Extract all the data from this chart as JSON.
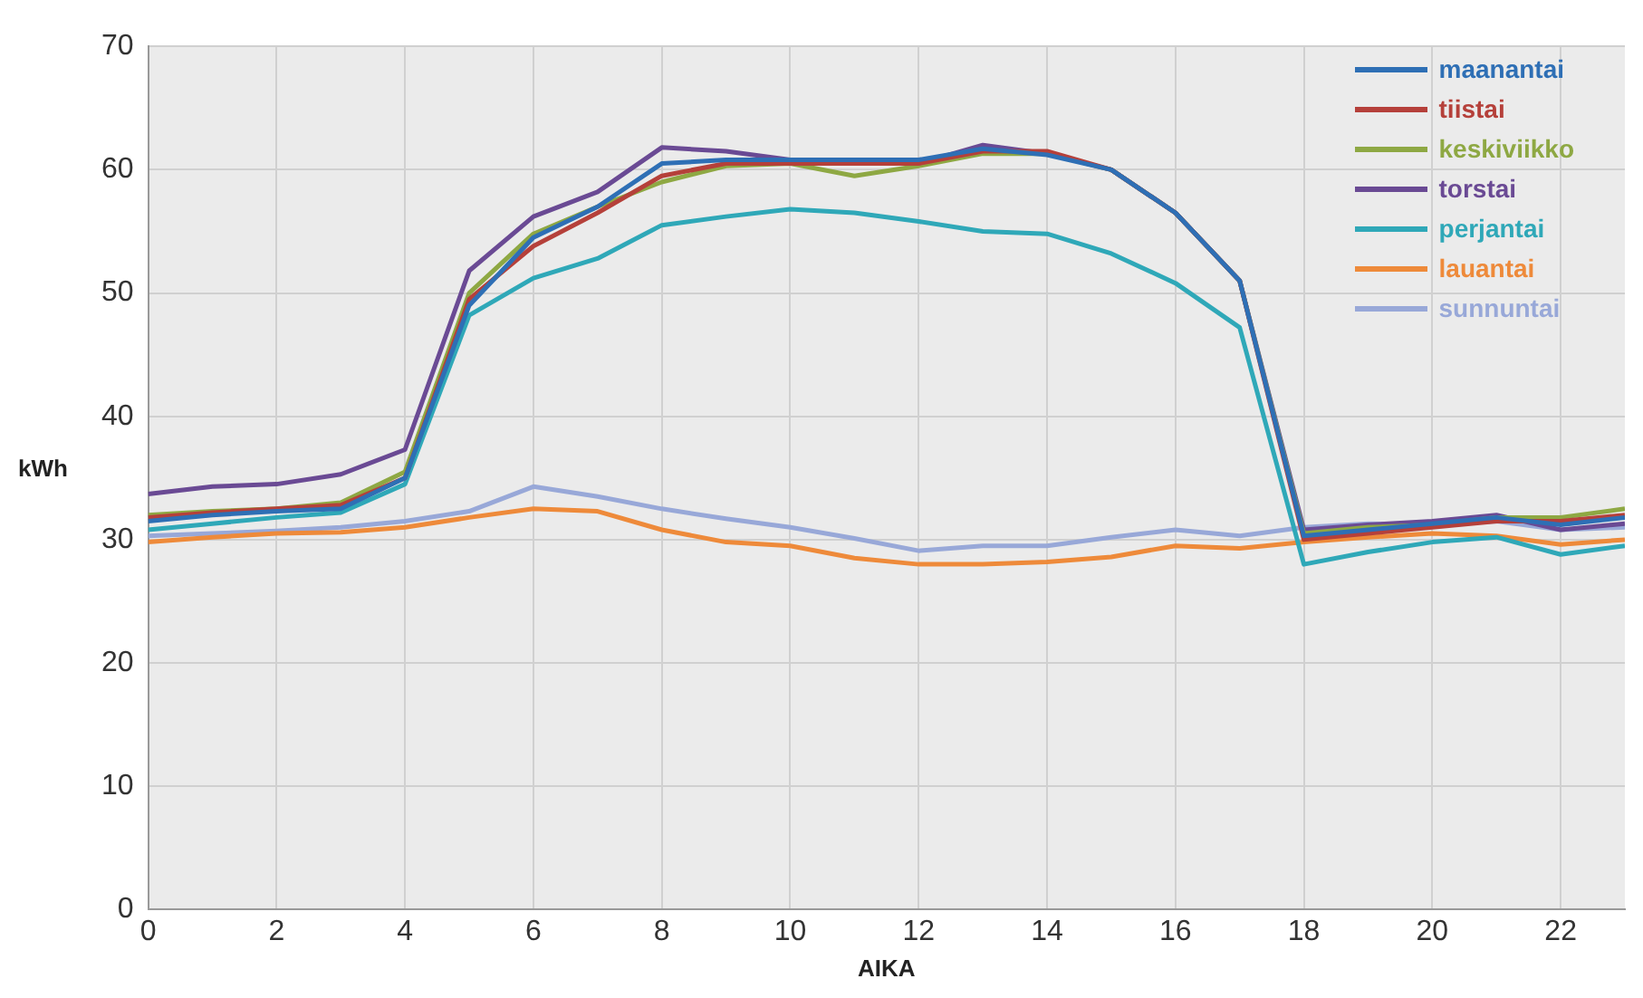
{
  "chart_data": {
    "type": "line",
    "xlabel": "AIKA",
    "ylabel": "kWh",
    "x": [
      0,
      1,
      2,
      3,
      4,
      5,
      6,
      7,
      8,
      9,
      10,
      11,
      12,
      13,
      14,
      15,
      16,
      17,
      18,
      19,
      20,
      21,
      22,
      23
    ],
    "xlim": [
      0,
      23
    ],
    "xticks": [
      0,
      2,
      4,
      6,
      8,
      10,
      12,
      14,
      16,
      18,
      20,
      22
    ],
    "ylim": [
      0,
      70
    ],
    "yticks": [
      0,
      10,
      20,
      30,
      40,
      50,
      60,
      70
    ],
    "grid": true,
    "legend": "top right",
    "marker": "none",
    "line_style": "solid",
    "series": [
      {
        "name": "maanantai",
        "color": "#2e6fb5",
        "values": [
          31.5,
          32,
          32.3,
          32.5,
          35,
          49,
          54.5,
          57,
          60.5,
          60.8,
          60.8,
          60.8,
          60.8,
          61.7,
          61.2,
          60,
          56.5,
          51,
          30.3,
          30.8,
          31.3,
          31.8,
          31.2,
          31.8
        ]
      },
      {
        "name": "tiistai",
        "color": "#b5403a",
        "values": [
          31.8,
          32.2,
          32.5,
          32.8,
          35,
          49.5,
          53.8,
          56.5,
          59.5,
          60.5,
          60.5,
          60.5,
          60.5,
          61.5,
          61.5,
          60,
          56.5,
          51,
          30,
          30.5,
          31,
          31.5,
          31.5,
          32
        ]
      },
      {
        "name": "keskiviikko",
        "color": "#8ea843",
        "values": [
          32,
          32.3,
          32.5,
          33,
          35.5,
          50,
          54.8,
          57,
          59,
          60.3,
          60.5,
          59.5,
          60.3,
          61.3,
          61.3,
          60,
          56.5,
          51,
          30.5,
          31,
          31.2,
          31.8,
          31.8,
          32.5
        ]
      },
      {
        "name": "torstai",
        "color": "#6a4a94",
        "values": [
          33.7,
          34.3,
          34.5,
          35.3,
          37.3,
          51.8,
          56.2,
          58.2,
          61.8,
          61.5,
          60.8,
          60.5,
          60.5,
          62,
          61.3,
          60,
          56.5,
          51,
          30.8,
          31.2,
          31.5,
          32,
          30.8,
          31.3
        ]
      },
      {
        "name": "perjantai",
        "color": "#2fa8b8",
        "values": [
          30.8,
          31.3,
          31.8,
          32.2,
          34.5,
          48.2,
          51.2,
          52.8,
          55.5,
          56.2,
          56.8,
          56.5,
          55.8,
          55,
          54.8,
          53.2,
          50.8,
          47.2,
          28,
          29,
          29.8,
          30.2,
          28.8,
          29.5
        ]
      },
      {
        "name": "lauantai",
        "color": "#ee8a3a",
        "values": [
          29.8,
          30.2,
          30.5,
          30.6,
          31,
          31.8,
          32.5,
          32.3,
          30.8,
          29.8,
          29.5,
          28.5,
          28,
          28,
          28.2,
          28.6,
          29.5,
          29.3,
          29.8,
          30.2,
          30.5,
          30.3,
          29.6,
          30
        ]
      },
      {
        "name": "sunnuntai",
        "color": "#98a8d8",
        "values": [
          30.3,
          30.5,
          30.7,
          31,
          31.5,
          32.3,
          34.3,
          33.5,
          32.5,
          31.7,
          31,
          30.1,
          29.1,
          29.5,
          29.5,
          30.2,
          30.8,
          30.3,
          31,
          31.3,
          31.2,
          31.5,
          30.8,
          31
        ]
      }
    ]
  }
}
